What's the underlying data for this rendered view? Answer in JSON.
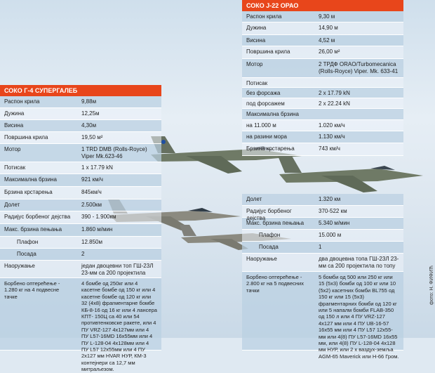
{
  "j22": {
    "title": "СОКО Ј-22 ОРАО",
    "rows": [
      {
        "label": "Распон крила",
        "value": "9,30 м"
      },
      {
        "label": "Дужина",
        "value": "14,90 м"
      },
      {
        "label": "Висина",
        "value": "4,52 м"
      },
      {
        "label": "Површина крила",
        "value": "26,00 м²"
      },
      {
        "label": "Мотор",
        "value": "2 ТРДФ ОRAO/Turbomecanica (Rolls-Royce) Viper. Mk. 633-41"
      },
      {
        "label": "Потисак",
        "value": ""
      },
      {
        "label": "без форсажа",
        "value": "2 x 17.79 kN"
      },
      {
        "label": "под форсажем",
        "value": "2 x 22.24 kN"
      },
      {
        "label": "Максимална брзина",
        "value": ""
      },
      {
        "label": "на 11.000 м",
        "value": "1.020 км/ч"
      },
      {
        "label": "на разини мора",
        "value": "1.130 км/ч"
      },
      {
        "label": "Брзина крстарења",
        "value": "743 км/ч"
      },
      {
        "label": "Долет",
        "value": "1.320 км"
      },
      {
        "label": "Радијус борбеног дејства",
        "value": "370-522 км"
      },
      {
        "label": "Макс. брзина пењања",
        "value": "5.340 м/мин"
      },
      {
        "label": "Плафон",
        "value": "15.000 м"
      },
      {
        "label": "Посада",
        "value": "1"
      },
      {
        "label": "Наоружање",
        "value": "два двоцевна топа ГШ-23Л 23-мм са 200 пројектила по топу"
      },
      {
        "label": "Борбено оптерећење - 2.800 кг на 5 подвесних тачки",
        "value": "5 бомби од 500 или 250 кг или 15 (5x3) бомби од 100 кг или 10 (5x2) касетних бомби BL755 од 150 кг или 15 (5x3) фрагментарних бомби од 120 кг или 5 напалм бомби FLAB-350 од 150 л или 4 ПУ VRZ-127 4x127 мм или 4 ПУ UB-16-57 16x55 мм или 4 ПУ L57 12x55-мм или 4(8) ПУ L57-16MD 16x55 мм, или 4(8) ПУ L-128-04 4x128 мм НУР, или 2 х ваздух-земља AGM-65 Maverick или H-66 Гром."
      }
    ]
  },
  "g4": {
    "title": "СОКО Г-4 СУПЕРГАЛЕБ",
    "rows": [
      {
        "label": "Распон крила",
        "value": "9,88м"
      },
      {
        "label": "Дужина",
        "value": "12,25м"
      },
      {
        "label": "Висина",
        "value": "4,30м"
      },
      {
        "label": "Површина крила",
        "value": "19,50 м²"
      },
      {
        "label": "Мотор",
        "value": "1 TRD DMB (Rolls-Royce) Viper Mk.623-46"
      },
      {
        "label": "Потисак",
        "value": "1 x 17.79 kN"
      },
      {
        "label": "Максимална брзина",
        "value": "921 км/ч"
      },
      {
        "label": "Брзина крстарења",
        "value": "845км/ч"
      },
      {
        "label": "Долет",
        "value": "2.500км"
      },
      {
        "label": "Радијус борбеног дејства",
        "value": "390 - 1.900км"
      },
      {
        "label": "Макс. брзина пењања",
        "value": "1.860 м/мин"
      },
      {
        "label": "Плафон",
        "value": "12.850м"
      },
      {
        "label": "Посада",
        "value": "2"
      },
      {
        "label": "Наоружање",
        "value": "један двоцевни топ ГШ-23Л 23-мм са 200 пројектила"
      },
      {
        "label": "Борбено оптерећење - 1.280 кг на 4 подвесне тачке",
        "value": "4 бомбе од 250кг или 4 касетне бомбе од 150 кг или 4 касетне бомбе од 120 кг или 32 (4x8) фрагментарне бомбе КБ-8-16 од 16 кг или 4 лансера КПТ- 150Ц са 40 или 54 противтенковске ракете, или 4 ПУ VRZ-127 4x127мм или 4 ПУ L57-16MD 16x55мм или 4 ПУ L-128-04 4x128мм или 4 ПУ L57 12x55мм или 4 ПУ 2x127 мм HVAR НУР, КМ-3 контејнери са 12,7 мм митраљезом."
      }
    ]
  },
  "credit": "фото: Н. ФИФИЋ"
}
